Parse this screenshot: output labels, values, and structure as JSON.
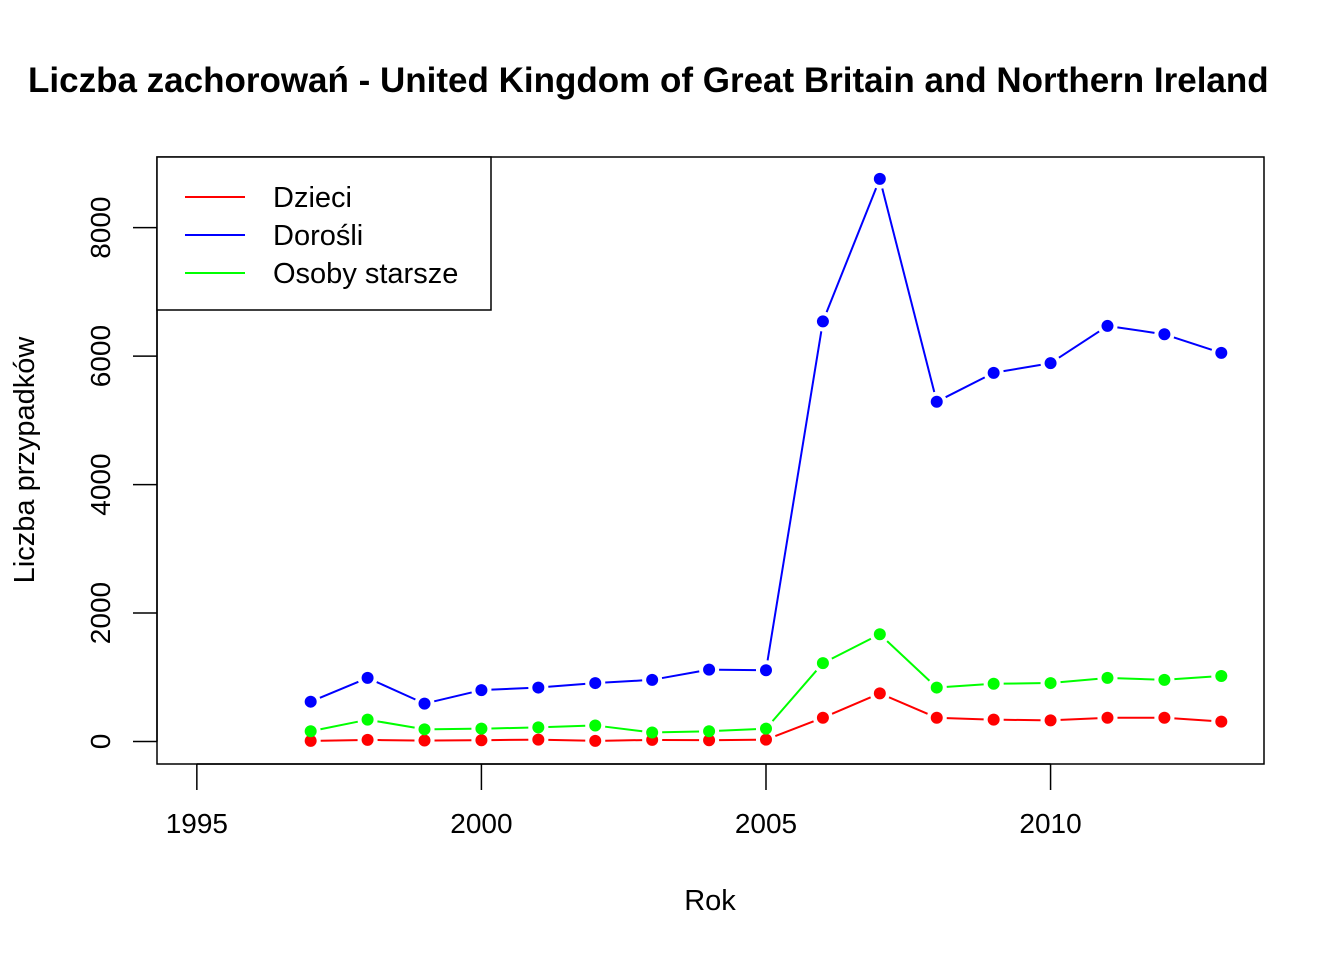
{
  "chart_data": {
    "type": "line",
    "title": "Liczba zachorowań -  United Kingdom of Great Britain and Northern Ireland",
    "xlabel": "Rok",
    "ylabel": "Liczba przypadków",
    "xlim": [
      1994.3,
      2013.75
    ],
    "ylim": [
      -350,
      9100
    ],
    "x_ticks": [
      1995,
      2000,
      2005,
      2010
    ],
    "y_ticks": [
      0,
      2000,
      4000,
      6000,
      8000
    ],
    "legend_position": "top-left",
    "grid": false,
    "x": [
      1997,
      1998,
      1999,
      2000,
      2001,
      2002,
      2003,
      2004,
      2005,
      2006,
      2007,
      2008,
      2009,
      2010,
      2011,
      2012,
      2013
    ],
    "series": [
      {
        "name": "Dzieci",
        "color": "#ff0000",
        "values": [
          10,
          25,
          15,
          20,
          30,
          10,
          25,
          20,
          30,
          370,
          750,
          370,
          340,
          330,
          370,
          370,
          310
        ]
      },
      {
        "name": "Dorośli",
        "color": "#0000ff",
        "values": [
          620,
          990,
          590,
          800,
          840,
          910,
          960,
          1120,
          1110,
          6540,
          8760,
          5290,
          5740,
          5890,
          6470,
          6340,
          6050
        ]
      },
      {
        "name": "Osoby starsze",
        "color": "#00ff00",
        "values": [
          160,
          340,
          190,
          200,
          220,
          250,
          140,
          160,
          200,
          1220,
          1670,
          840,
          900,
          910,
          990,
          960,
          1020
        ]
      }
    ]
  }
}
